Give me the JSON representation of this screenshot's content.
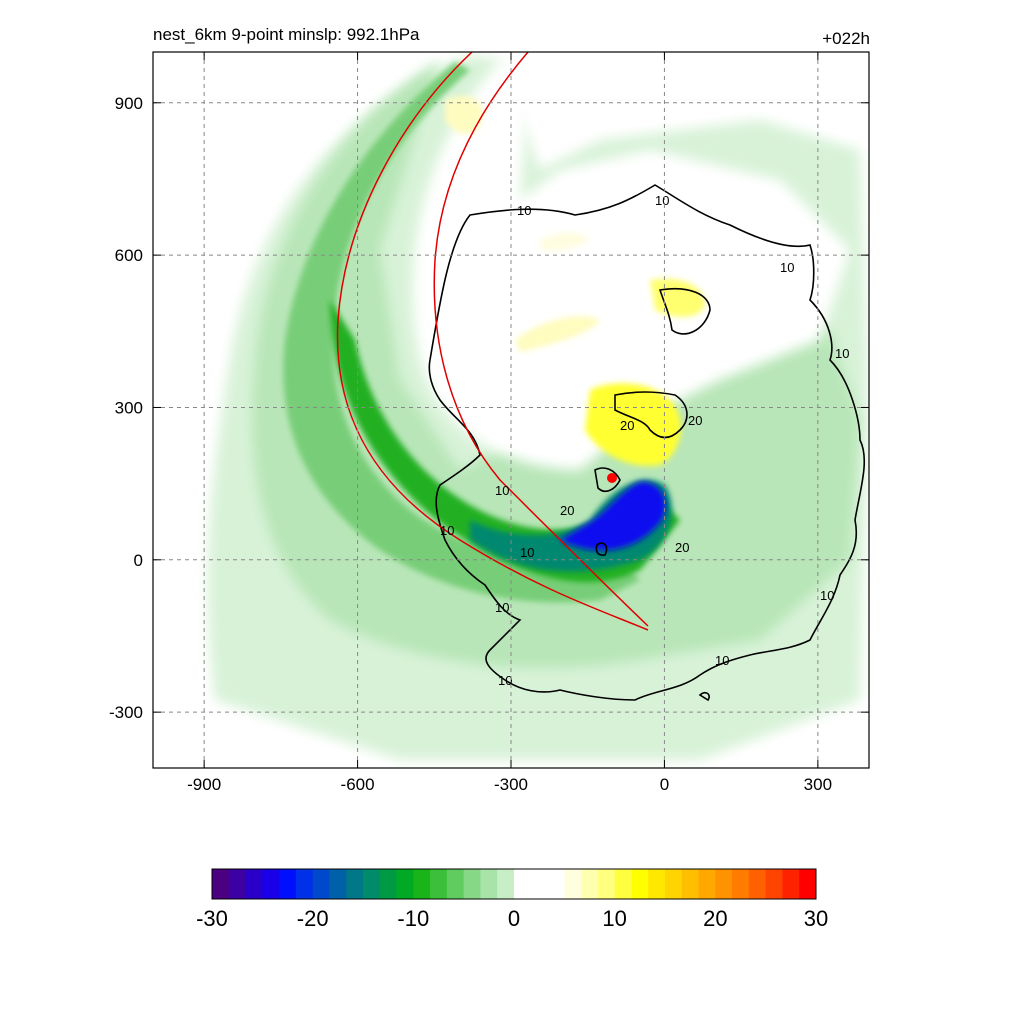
{
  "chart_data": {
    "type": "contour-map",
    "title": "nest_6km  9-point minslp: 992.1hPa",
    "time_label": "+022h",
    "xlim": [
      -1000,
      400
    ],
    "ylim": [
      -410,
      1000
    ],
    "x_ticks": [
      -900,
      -600,
      -300,
      0,
      300
    ],
    "y_ticks": [
      -300,
      0,
      300,
      600,
      900
    ],
    "grid": true,
    "colorbar": {
      "min": -30,
      "max": 30,
      "tick_values": [
        -30,
        -20,
        -10,
        0,
        10,
        20,
        30
      ],
      "colors": [
        "#4b0082",
        "#3d00a3",
        "#2a00c8",
        "#1a00e8",
        "#0010ff",
        "#0030e8",
        "#0048cc",
        "#0060a8",
        "#007888",
        "#008c6a",
        "#009a44",
        "#00aa22",
        "#18b418",
        "#3cc03c",
        "#60cc60",
        "#86d886",
        "#a8e4a8",
        "#c8eec8",
        "#ffffff",
        "#ffffff",
        "#ffffff",
        "#ffffe0",
        "#ffffb0",
        "#ffff80",
        "#ffff40",
        "#ffff00",
        "#ffe800",
        "#ffd400",
        "#ffbe00",
        "#ffa800",
        "#ff9200",
        "#ff7c00",
        "#ff6000",
        "#ff4400",
        "#ff2200",
        "#ff0000"
      ]
    },
    "contour_labels": [
      "10",
      "20"
    ],
    "center_marker": {
      "x": -100,
      "y": 160,
      "color": "#ff0000"
    }
  }
}
